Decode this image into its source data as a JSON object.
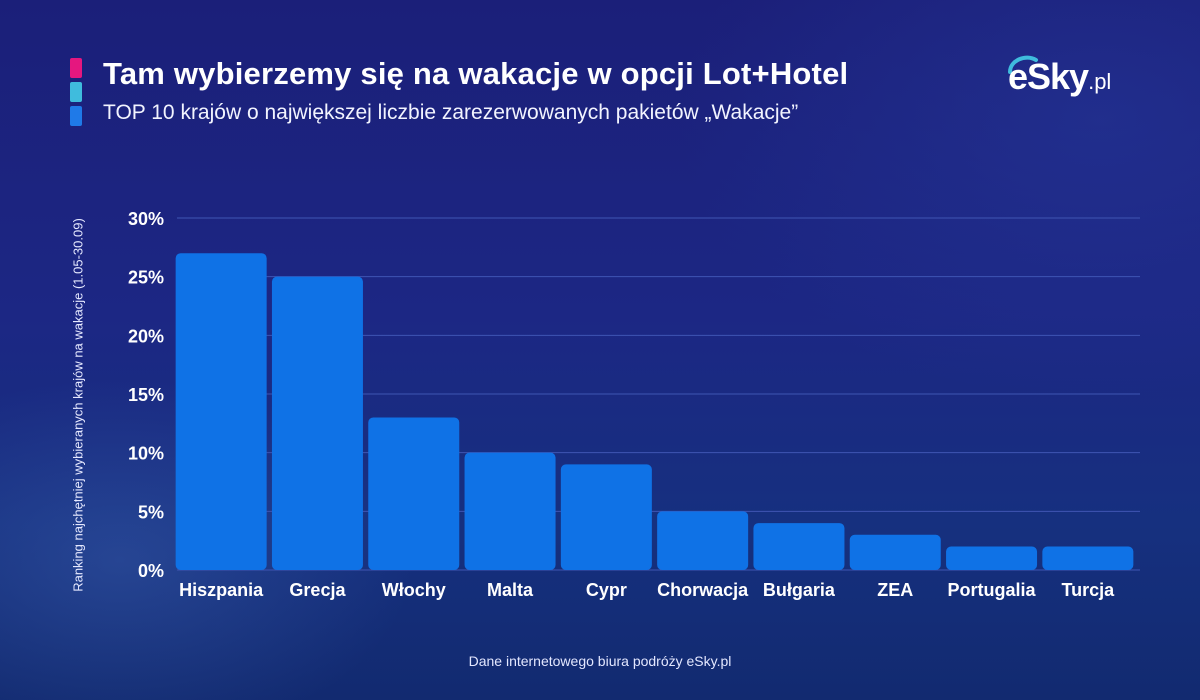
{
  "header": {
    "title": "Tam wybierzemy się na wakacje w opcji Lot+Hotel",
    "subtitle": "TOP 10 krajów o największej liczbie zarezerwowanych pakietów „Wakacje”",
    "accent_colors": [
      "#e5177f",
      "#3fbcdd",
      "#1f7ae8"
    ]
  },
  "logo": {
    "name": "eSky",
    "suffix": ".pl",
    "icon": "esky-swoosh-logo"
  },
  "footer": {
    "source": "Dane internetowego biura podróży eSky.pl"
  },
  "colors": {
    "bar": "#0f72e6",
    "grid": "#3f55b3"
  },
  "chart_data": {
    "type": "bar",
    "title": "Tam wybierzemy się na wakacje w opcji Lot+Hotel",
    "subtitle": "TOP 10 krajów o największej liczbie zarezerwowanych pakietów „Wakacje”",
    "xlabel": "",
    "ylabel": "Ranking najchętniej wybieranych krajów na wakacje (1.05-30.09)",
    "categories": [
      "Hiszpania",
      "Grecja",
      "Włochy",
      "Malta",
      "Cypr",
      "Chorwacja",
      "Bułgaria",
      "ZEA",
      "Portugalia",
      "Turcja"
    ],
    "values": [
      27,
      25,
      13,
      10,
      9,
      5,
      4,
      3,
      2,
      2
    ],
    "ylim": [
      0,
      30
    ],
    "yticks": [
      0,
      5,
      10,
      15,
      20,
      25,
      30
    ],
    "ytick_labels": [
      "0%",
      "5%",
      "10%",
      "15%",
      "20%",
      "25%",
      "30%"
    ],
    "grid": true,
    "legend": "none"
  }
}
